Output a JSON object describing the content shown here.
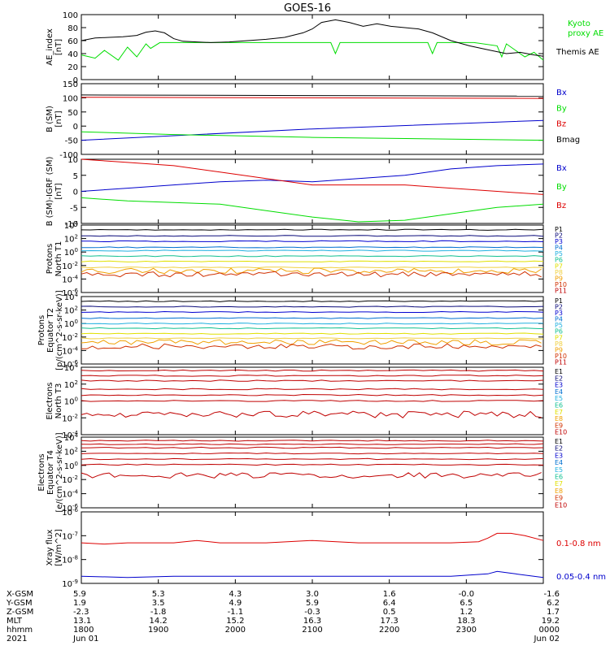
{
  "title": "GOES-16",
  "colors": {
    "black": "#000000",
    "green": "#00dd00",
    "red": "#dd0000",
    "blue": "#0000cc",
    "P1": "#000000",
    "P2": "#0a0a7a",
    "P3": "#0000d0",
    "P4": "#0070d0",
    "P5": "#20b0e0",
    "P6": "#10c090",
    "P7": "#e0e000",
    "P8": "#f0d040",
    "P9": "#f0a000",
    "P10": "#d03000",
    "P11": "#c00000"
  },
  "chart_data": [
    {
      "id": "ae",
      "type": "line",
      "ylabel": "AE_index\n[nT]",
      "ylim": [
        0,
        100
      ],
      "yticks": [
        "0",
        "20",
        "40",
        "60",
        "80",
        "100"
      ],
      "series": [
        {
          "name": "Kyoto\nproxy AE",
          "color_key": "green",
          "points": [
            [
              0,
              38
            ],
            [
              3,
              33
            ],
            [
              5,
              45
            ],
            [
              8,
              30
            ],
            [
              10,
              50
            ],
            [
              12,
              35
            ],
            [
              14,
              55
            ],
            [
              15,
              48
            ],
            [
              17,
              57
            ],
            [
              20,
              57
            ],
            [
              30,
              57
            ],
            [
              40,
              57
            ],
            [
              50,
              57
            ],
            [
              54,
              57
            ],
            [
              55,
              40
            ],
            [
              56,
              57
            ],
            [
              60,
              57
            ],
            [
              70,
              57
            ],
            [
              75,
              57
            ],
            [
              76,
              40
            ],
            [
              77,
              57
            ],
            [
              85,
              57
            ],
            [
              90,
              52
            ],
            [
              91,
              35
            ],
            [
              92,
              55
            ],
            [
              94,
              45
            ],
            [
              96,
              35
            ],
            [
              98,
              42
            ],
            [
              100,
              30
            ]
          ]
        },
        {
          "name": "Themis AE",
          "color_key": "black",
          "points": [
            [
              0,
              60
            ],
            [
              3,
              64
            ],
            [
              6,
              65
            ],
            [
              9,
              66
            ],
            [
              12,
              68
            ],
            [
              14,
              73
            ],
            [
              16,
              75
            ],
            [
              18,
              72
            ],
            [
              20,
              63
            ],
            [
              22,
              59
            ],
            [
              25,
              58
            ],
            [
              28,
              57
            ],
            [
              32,
              58
            ],
            [
              36,
              60
            ],
            [
              40,
              62
            ],
            [
              44,
              65
            ],
            [
              48,
              72
            ],
            [
              50,
              78
            ],
            [
              52,
              88
            ],
            [
              55,
              92
            ],
            [
              58,
              88
            ],
            [
              61,
              82
            ],
            [
              64,
              86
            ],
            [
              67,
              82
            ],
            [
              70,
              80
            ],
            [
              73,
              78
            ],
            [
              76,
              72
            ],
            [
              80,
              60
            ],
            [
              84,
              52
            ],
            [
              88,
              46
            ],
            [
              92,
              40
            ],
            [
              95,
              42
            ],
            [
              98,
              38
            ],
            [
              100,
              36
            ]
          ]
        }
      ]
    },
    {
      "id": "bsm",
      "type": "line",
      "ylabel": "B (SM)\n[nT]",
      "ylim": [
        -100,
        150
      ],
      "yticks": [
        "-100",
        "-50",
        "0",
        "50",
        "100",
        "150"
      ],
      "series": [
        {
          "name": "Bx",
          "color_key": "blue",
          "points": [
            [
              0,
              -50
            ],
            [
              50,
              -10
            ],
            [
              100,
              20
            ]
          ]
        },
        {
          "name": "By",
          "color_key": "green",
          "points": [
            [
              0,
              -20
            ],
            [
              20,
              -30
            ],
            [
              50,
              -40
            ],
            [
              100,
              -50
            ]
          ]
        },
        {
          "name": "Bz",
          "color_key": "red",
          "points": [
            [
              0,
              102
            ],
            [
              100,
              98
            ]
          ]
        },
        {
          "name": "Bmag",
          "color_key": "black",
          "points": [
            [
              0,
              110
            ],
            [
              100,
              106
            ]
          ]
        }
      ]
    },
    {
      "id": "bigrf",
      "type": "line",
      "ylabel": "B (SM)-IGRF (SM)\n[nT]",
      "ylim": [
        -10,
        10
      ],
      "yticks": [
        "-10",
        "-5",
        "0",
        "5",
        "10"
      ],
      "series": [
        {
          "name": "Bx",
          "color_key": "blue",
          "points": [
            [
              0,
              0
            ],
            [
              10,
              1
            ],
            [
              20,
              2
            ],
            [
              30,
              3
            ],
            [
              40,
              3.5
            ],
            [
              50,
              3
            ],
            [
              60,
              4
            ],
            [
              70,
              5
            ],
            [
              80,
              7
            ],
            [
              90,
              8
            ],
            [
              100,
              8.5
            ]
          ]
        },
        {
          "name": "By",
          "color_key": "green",
          "points": [
            [
              0,
              -2
            ],
            [
              10,
              -3
            ],
            [
              20,
              -3.5
            ],
            [
              30,
              -4
            ],
            [
              40,
              -6
            ],
            [
              50,
              -8
            ],
            [
              60,
              -9.5
            ],
            [
              70,
              -9
            ],
            [
              80,
              -7
            ],
            [
              90,
              -5
            ],
            [
              100,
              -4
            ]
          ]
        },
        {
          "name": "Bz",
          "color_key": "red",
          "points": [
            [
              0,
              10
            ],
            [
              10,
              9
            ],
            [
              20,
              8
            ],
            [
              30,
              6
            ],
            [
              40,
              4
            ],
            [
              50,
              2
            ],
            [
              60,
              2
            ],
            [
              70,
              2
            ],
            [
              80,
              1
            ],
            [
              90,
              0
            ],
            [
              100,
              -1
            ]
          ]
        }
      ]
    },
    {
      "id": "protons_t1",
      "type": "line",
      "ylabel": "Protons\nNorth T1",
      "ylog": true,
      "ylim": [
        -6,
        4
      ],
      "yticks": [
        "10^-6",
        "10^-4",
        "10^-2",
        "10^0",
        "10^2",
        "10^4"
      ],
      "legend": [
        "P1",
        "P2",
        "P3",
        "P4",
        "P5",
        "P6",
        "P7",
        "P8",
        "P9",
        "P10",
        "P11"
      ],
      "levels": {
        "P1": 3.3,
        "P2": 2.4,
        "P3": 1.6,
        "P4": 0.7,
        "P5": 0.2,
        "P6": -0.6,
        "P7": -1.4,
        "P8": -2.3,
        "P9": -2.8,
        "P10": -3.3
      }
    },
    {
      "id": "protons_t2",
      "type": "line",
      "ylabel": "Protons\nEquator T2\n[p/(cm^2-s-sr-keV)]",
      "ylog": true,
      "ylim": [
        -6,
        4
      ],
      "yticks": [
        "10^-6",
        "10^-4",
        "10^-2",
        "10^0",
        "10^2",
        "10^4"
      ],
      "legend": [
        "P1",
        "P2",
        "P3",
        "P4",
        "P5",
        "P6",
        "P7",
        "P8",
        "P9",
        "P10",
        "P11"
      ],
      "levels": {
        "P1": 3.3,
        "P2": 2.5,
        "P3": 1.7,
        "P4": 0.8,
        "P5": 0.0,
        "P6": -0.7,
        "P7": -1.5,
        "P8": -2.2,
        "P9": -2.8,
        "P10": -3.4
      }
    },
    {
      "id": "electrons_t3",
      "type": "line",
      "ylabel": "Electrons\nNorth T3",
      "ylog": true,
      "ylim": [
        -4,
        4
      ],
      "yticks": [
        "10^-4",
        "10^-2",
        "10^0",
        "10^2",
        "10^4"
      ],
      "legend": [
        "E1",
        "E2",
        "E3",
        "E4",
        "E5",
        "E6",
        "E7",
        "E8",
        "E9",
        "E10"
      ],
      "levels": {
        "E1": 3.6,
        "E2": 3.0,
        "E3": 2.4,
        "E4": 1.4,
        "E5": 0.7,
        "E6": 0.0,
        "E9": -1.6
      }
    },
    {
      "id": "electrons_t4",
      "type": "line",
      "ylabel": "Electrons\nEquator T4\n[e/(cm^2-s-sr-keV)]",
      "ylog": true,
      "ylim": [
        -6,
        4
      ],
      "yticks": [
        "10^-6",
        "10^-4",
        "10^-2",
        "10^0",
        "10^2",
        "10^4"
      ],
      "legend": [
        "E1",
        "E2",
        "E3",
        "E4",
        "E5",
        "E6",
        "E7",
        "E8",
        "E9",
        "E10"
      ],
      "levels": {
        "E1": 3.5,
        "E2": 3.0,
        "E3": 2.5,
        "E4": 1.7,
        "E5": 0.9,
        "E6": 0.1,
        "E9": -1.4
      }
    },
    {
      "id": "xray",
      "type": "line",
      "ylabel": "Xray flux\n[W/m^2]",
      "ylog": true,
      "ylim": [
        -9,
        -6
      ],
      "yticks": [
        "10^-9",
        "10^-8",
        "10^-7",
        "10^-6"
      ],
      "series": [
        {
          "name": "0.1-0.8 nm",
          "color_key": "red",
          "points": [
            [
              0,
              -7.3
            ],
            [
              5,
              -7.35
            ],
            [
              10,
              -7.3
            ],
            [
              20,
              -7.3
            ],
            [
              25,
              -7.2
            ],
            [
              30,
              -7.3
            ],
            [
              40,
              -7.3
            ],
            [
              50,
              -7.2
            ],
            [
              60,
              -7.3
            ],
            [
              70,
              -7.3
            ],
            [
              80,
              -7.3
            ],
            [
              86,
              -7.25
            ],
            [
              88,
              -7.1
            ],
            [
              90,
              -6.9
            ],
            [
              93,
              -6.9
            ],
            [
              96,
              -7.0
            ],
            [
              100,
              -7.2
            ]
          ]
        },
        {
          "name": "0.05-0.4 nm",
          "color_key": "blue",
          "points": [
            [
              0,
              -8.7
            ],
            [
              10,
              -8.75
            ],
            [
              20,
              -8.7
            ],
            [
              30,
              -8.7
            ],
            [
              40,
              -8.7
            ],
            [
              50,
              -8.7
            ],
            [
              60,
              -8.7
            ],
            [
              70,
              -8.7
            ],
            [
              80,
              -8.7
            ],
            [
              88,
              -8.6
            ],
            [
              90,
              -8.5
            ],
            [
              94,
              -8.6
            ],
            [
              100,
              -8.75
            ]
          ]
        }
      ]
    }
  ],
  "ephemeris": {
    "labels": [
      "X-GSM",
      "Y-GSM",
      "Z-GSM",
      "MLT",
      "hhmm",
      "2021"
    ],
    "columns": [
      [
        "5.9",
        "1.9",
        "-2.3",
        "13.1",
        "1800",
        "Jun 01"
      ],
      [
        "5.3",
        "3.5",
        "-1.8",
        "14.2",
        "1900",
        ""
      ],
      [
        "4.3",
        "4.9",
        "-1.1",
        "15.2",
        "2000",
        ""
      ],
      [
        "3.0",
        "5.9",
        "-0.3",
        "16.3",
        "2100",
        ""
      ],
      [
        "1.6",
        "6.4",
        "0.5",
        "17.3",
        "2200",
        ""
      ],
      [
        "-0.0",
        "6.5",
        "1.2",
        "18.3",
        "2300",
        ""
      ],
      [
        "-1.6",
        "6.2",
        "1.7",
        "19.2",
        "0000",
        "Jun 02"
      ]
    ]
  }
}
